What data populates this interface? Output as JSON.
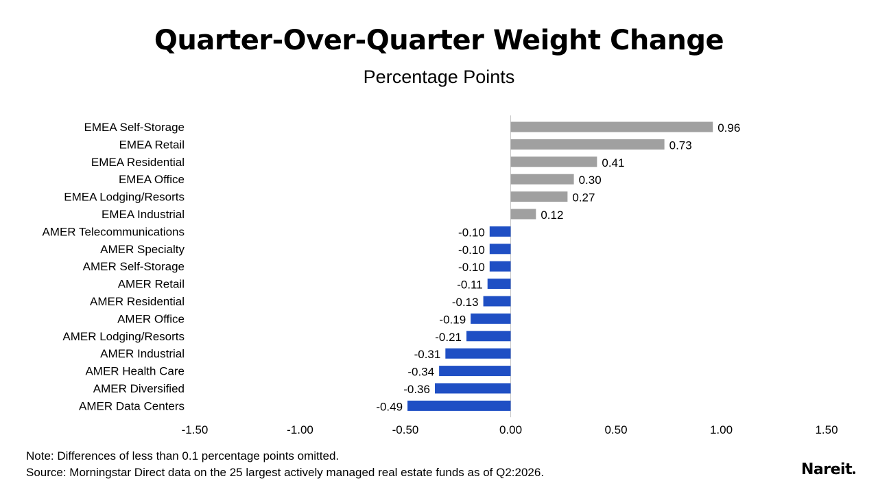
{
  "chart_data": {
    "type": "bar",
    "orientation": "horizontal",
    "title": "Quarter-Over-Quarter Weight Change",
    "subtitle": "Percentage Points",
    "categories": [
      "EMEA Self-Storage",
      "EMEA Retail",
      "EMEA Residential",
      "EMEA Office",
      "EMEA Lodging/Resorts",
      "EMEA Industrial",
      "AMER Telecommunications",
      "AMER Specialty",
      "AMER Self-Storage",
      "AMER Retail",
      "AMER Residential",
      "AMER Office",
      "AMER Lodging/Resorts",
      "AMER Industrial",
      "AMER Health Care",
      "AMER Diversified",
      "AMER Data Centers"
    ],
    "values": [
      0.96,
      0.73,
      0.41,
      0.3,
      0.27,
      0.12,
      -0.1,
      -0.1,
      -0.1,
      -0.11,
      -0.13,
      -0.19,
      -0.21,
      -0.31,
      -0.34,
      -0.36,
      -0.49
    ],
    "value_labels": [
      "0.96",
      "0.73",
      "0.41",
      "0.30",
      "0.27",
      "0.12",
      "-0.10",
      "-0.10",
      "-0.10",
      "-0.11",
      "-0.13",
      "-0.19",
      "-0.21",
      "-0.31",
      "-0.34",
      "-0.36",
      "-0.49"
    ],
    "xlim": [
      -1.5,
      1.5
    ],
    "xticks": [
      -1.5,
      -1.0,
      -0.5,
      0.0,
      0.5,
      1.0,
      1.5
    ],
    "xtick_labels": [
      "-1.50",
      "-1.00",
      "-0.50",
      "0.00",
      "0.50",
      "1.00",
      "1.50"
    ],
    "xlabel": "",
    "ylabel": "",
    "grid": false,
    "legend": "none",
    "colors": {
      "positive": "#a0a0a0",
      "negative": "#1f4fc4",
      "zero_line": "#c8c8c8"
    }
  },
  "footer": {
    "note": "Note: Differences of less than 0.1 percentage points omitted.",
    "source": "Source: Morningstar Direct data on the 25 largest actively managed real estate funds as of Q2:2026.",
    "logo": "Nareit"
  }
}
